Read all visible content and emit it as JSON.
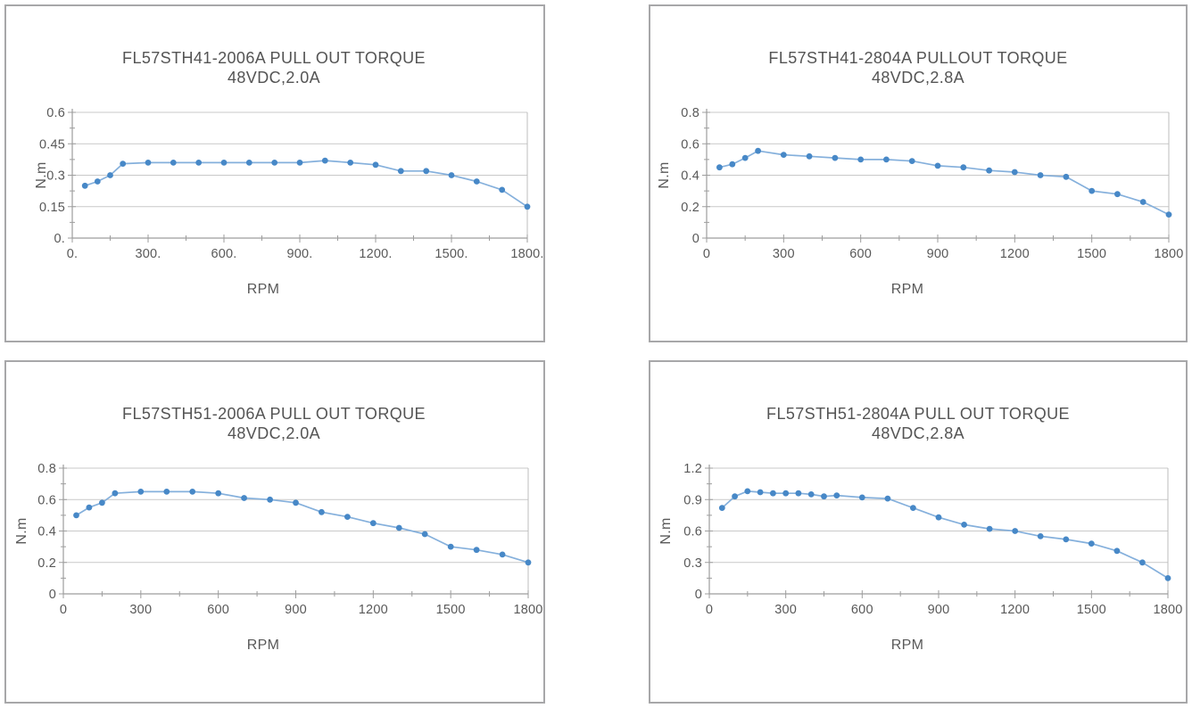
{
  "page": {
    "background": "#ffffff"
  },
  "colors": {
    "panel_border": "#a7a7a9",
    "gridline": "#c9c9c9",
    "axis": "#9d9d9d",
    "plot_border": "#bcbcbc",
    "series_line": "#85b0dc",
    "series_marker": "#4788c7",
    "text": "#595959"
  },
  "chart_data": [
    {
      "type": "line",
      "model": "FL57STH41-2006A",
      "title_line1": "FL57STH41-2006A  PULL OUT TORQUE",
      "title_line2": "48VDC,2.0A",
      "xlabel": "RPM",
      "ylabel": "N.m",
      "xlim": [
        0,
        1800
      ],
      "ylim": [
        0,
        0.6
      ],
      "x_major": 300,
      "x_minor": 150,
      "y_major": 0.15,
      "y_minor": 0.075,
      "x_tick_labels": [
        "0.",
        "300.",
        "600.",
        "900.",
        "1200.",
        "1500.",
        "1800."
      ],
      "y_tick_labels": [
        "0.",
        "0.15",
        "0.3",
        "0.45",
        "0.6"
      ],
      "grid": "horizontal-major",
      "legend": "none",
      "x": [
        50,
        100,
        150,
        200,
        300,
        400,
        500,
        600,
        700,
        800,
        900,
        1000,
        1100,
        1200,
        1300,
        1400,
        1500,
        1600,
        1700,
        1800
      ],
      "y": [
        0.25,
        0.27,
        0.3,
        0.355,
        0.36,
        0.36,
        0.36,
        0.36,
        0.36,
        0.36,
        0.36,
        0.37,
        0.36,
        0.35,
        0.32,
        0.32,
        0.3,
        0.27,
        0.23,
        0.15
      ]
    },
    {
      "type": "line",
      "model": "FL57STH41-2804A",
      "title_line1": "FL57STH41-2804A  PULLOUT TORQUE",
      "title_line2": "48VDC,2.8A",
      "xlabel": "RPM",
      "ylabel": "N.m",
      "xlim": [
        0,
        1800
      ],
      "ylim": [
        0,
        0.8
      ],
      "x_major": 300,
      "x_minor": 150,
      "y_major": 0.2,
      "y_minor": 0.1,
      "x_tick_labels": [
        "0",
        "300",
        "600",
        "900",
        "1200",
        "1500",
        "1800"
      ],
      "y_tick_labels": [
        "0",
        "0.2",
        "0.4",
        "0.6",
        "0.8"
      ],
      "grid": "horizontal-major",
      "legend": "none",
      "x": [
        50,
        100,
        150,
        200,
        300,
        400,
        500,
        600,
        700,
        800,
        900,
        1000,
        1100,
        1200,
        1300,
        1400,
        1500,
        1600,
        1700,
        1800
      ],
      "y": [
        0.45,
        0.47,
        0.51,
        0.555,
        0.53,
        0.52,
        0.51,
        0.5,
        0.5,
        0.49,
        0.46,
        0.45,
        0.43,
        0.42,
        0.4,
        0.39,
        0.3,
        0.28,
        0.23,
        0.15
      ]
    },
    {
      "type": "line",
      "model": "FL57STH51-2006A",
      "title_line1": "FL57STH51-2006A  PULL OUT TORQUE",
      "title_line2": "48VDC,2.0A",
      "xlabel": "RPM",
      "ylabel": "N.m",
      "xlim": [
        0,
        1800
      ],
      "ylim": [
        0,
        0.8
      ],
      "x_major": 300,
      "x_minor": 150,
      "y_major": 0.2,
      "y_minor": 0.1,
      "x_tick_labels": [
        "0",
        "300",
        "600",
        "900",
        "1200",
        "1500",
        "1800"
      ],
      "y_tick_labels": [
        "0",
        "0.2",
        "0.4",
        "0.6",
        "0.8"
      ],
      "grid": "horizontal-major",
      "legend": "none",
      "x": [
        50,
        100,
        150,
        200,
        300,
        400,
        500,
        600,
        700,
        800,
        900,
        1000,
        1100,
        1200,
        1300,
        1400,
        1500,
        1600,
        1700,
        1800
      ],
      "y": [
        0.5,
        0.55,
        0.58,
        0.64,
        0.65,
        0.65,
        0.65,
        0.64,
        0.61,
        0.6,
        0.58,
        0.52,
        0.49,
        0.45,
        0.42,
        0.38,
        0.3,
        0.28,
        0.25,
        0.2
      ]
    },
    {
      "type": "line",
      "model": "FL57STH51-2804A",
      "title_line1": "FL57STH51-2804A  PULL OUT TORQUE",
      "title_line2": "48VDC,2.8A",
      "xlabel": "RPM",
      "ylabel": "N.m",
      "xlim": [
        0,
        1800
      ],
      "ylim": [
        0,
        1.2
      ],
      "x_major": 300,
      "x_minor": 150,
      "y_major": 0.3,
      "y_minor": 0.15,
      "x_tick_labels": [
        "0",
        "300",
        "600",
        "900",
        "1200",
        "1500",
        "1800"
      ],
      "y_tick_labels": [
        "0",
        "0.3",
        "0.6",
        "0.9",
        "1.2"
      ],
      "grid": "horizontal-major",
      "legend": "none",
      "x": [
        50,
        100,
        150,
        200,
        250,
        300,
        350,
        400,
        450,
        500,
        600,
        700,
        800,
        900,
        1000,
        1100,
        1200,
        1300,
        1400,
        1500,
        1600,
        1700,
        1800
      ],
      "y": [
        0.82,
        0.93,
        0.98,
        0.97,
        0.96,
        0.96,
        0.96,
        0.95,
        0.93,
        0.94,
        0.92,
        0.91,
        0.82,
        0.73,
        0.66,
        0.62,
        0.6,
        0.55,
        0.52,
        0.48,
        0.41,
        0.3,
        0.15
      ]
    }
  ]
}
